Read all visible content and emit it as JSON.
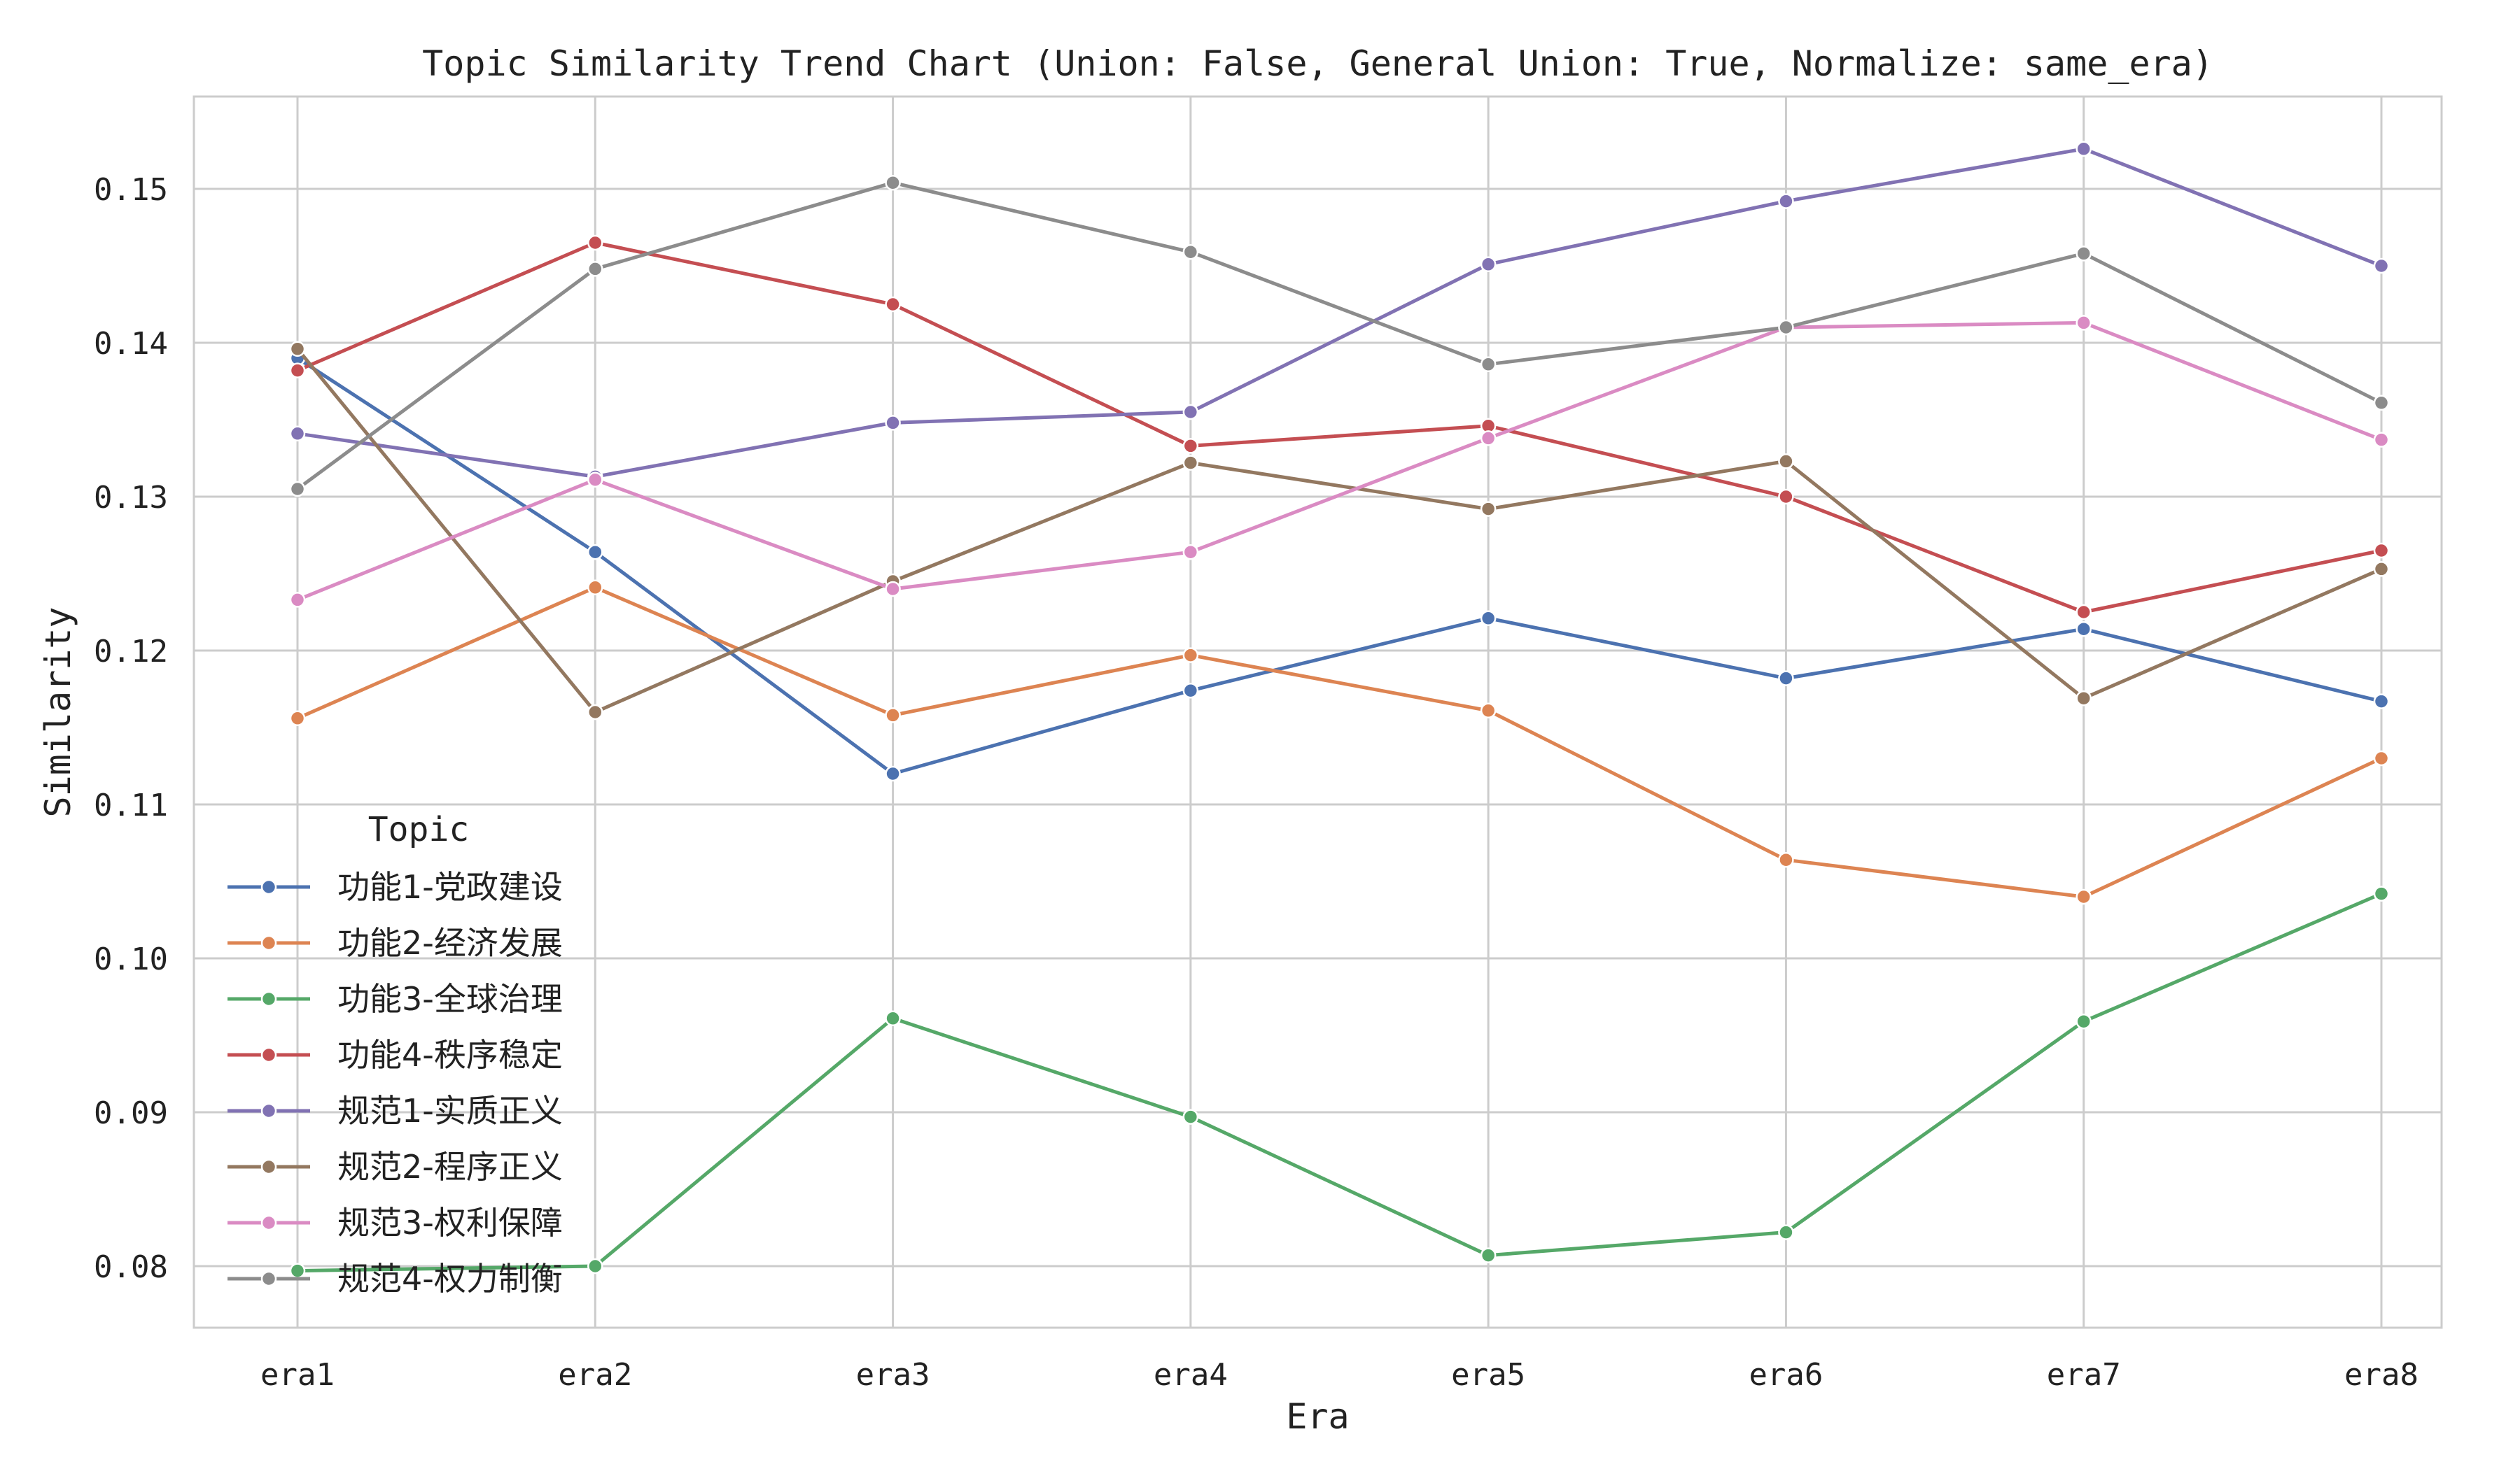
{
  "chart_data": {
    "type": "line",
    "title": "Topic Similarity Trend Chart (Union: False, General Union: True, Normalize: same_era)",
    "xlabel": "Era",
    "ylabel": "Similarity",
    "categories": [
      "era1",
      "era2",
      "era3",
      "era4",
      "era5",
      "era6",
      "era7",
      "era8"
    ],
    "ylim": [
      0.076,
      0.156
    ],
    "yticks": [
      0.08,
      0.09,
      0.1,
      0.11,
      0.12,
      0.13,
      0.14,
      0.15
    ],
    "ytick_labels": [
      "0.08",
      "0.09",
      "0.10",
      "0.11",
      "0.12",
      "0.13",
      "0.14",
      "0.15"
    ],
    "grid": true,
    "legend": {
      "title": "Topic",
      "placement": "lower-left"
    },
    "series": [
      {
        "name": "功能1-党政建设",
        "color": "#4c72b0",
        "values": [
          0.139,
          0.1264,
          0.112,
          0.1174,
          0.1221,
          0.1182,
          0.1214,
          0.1167
        ]
      },
      {
        "name": "功能2-经济发展",
        "color": "#dd8452",
        "values": [
          0.1156,
          0.1241,
          0.1158,
          0.1197,
          0.1161,
          0.1064,
          0.104,
          0.113
        ]
      },
      {
        "name": "功能3-全球治理",
        "color": "#55a868",
        "values": [
          0.0797,
          0.08,
          0.0961,
          0.0897,
          0.0807,
          0.0822,
          0.0959,
          0.1042
        ]
      },
      {
        "name": "功能4-秩序稳定",
        "color": "#c44e52",
        "values": [
          0.1382,
          0.1465,
          0.1425,
          0.1333,
          0.1346,
          0.13,
          0.1225,
          0.1265
        ]
      },
      {
        "name": "规范1-实质正义",
        "color": "#8172b3",
        "values": [
          0.1341,
          0.1313,
          0.1348,
          0.1355,
          0.1451,
          0.1492,
          0.1526,
          0.145
        ]
      },
      {
        "name": "规范2-程序正义",
        "color": "#937860",
        "values": [
          0.1396,
          0.116,
          0.1245,
          0.1322,
          0.1292,
          0.1323,
          0.1169,
          0.1253
        ]
      },
      {
        "name": "规范3-权利保障",
        "color": "#da8bc3",
        "values": [
          0.1233,
          0.1311,
          0.124,
          0.1264,
          0.1338,
          0.141,
          0.1413,
          0.1337
        ]
      },
      {
        "name": "规范4-权力制衡",
        "color": "#8c8c8c",
        "values": [
          0.1305,
          0.1448,
          0.1504,
          0.1459,
          0.1386,
          0.141,
          0.1458,
          0.1361
        ]
      }
    ]
  }
}
